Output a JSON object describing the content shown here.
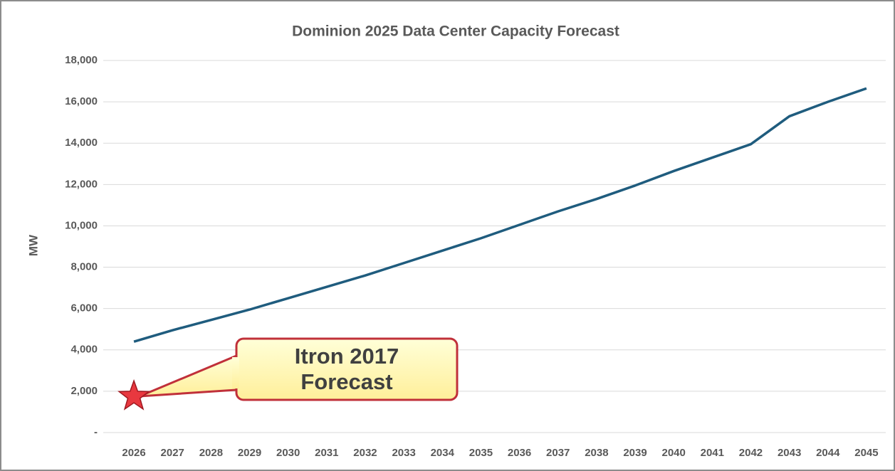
{
  "chart_data": {
    "type": "line",
    "title": "Dominion 2025 Data Center Capacity Forecast",
    "y_label": "MW",
    "categories": [
      "2026",
      "2027",
      "2028",
      "2029",
      "2030",
      "2031",
      "2032",
      "2033",
      "2034",
      "2035",
      "2036",
      "2037",
      "2038",
      "2039",
      "2040",
      "2041",
      "2042",
      "2043",
      "2044",
      "2045"
    ],
    "series": [
      {
        "color": "#1f5c7e",
        "values": [
          4400,
          4950,
          5450,
          5950,
          6500,
          7050,
          7600,
          8200,
          8800,
          9400,
          10050,
          10700,
          11300,
          11950,
          12650,
          13300,
          13950,
          15300,
          16000,
          16650
        ]
      }
    ],
    "ylim": [
      0,
      18000
    ],
    "yticks": [
      {
        "value": 0,
        "label": "-"
      },
      {
        "value": 2000,
        "label": "2,000"
      },
      {
        "value": 4000,
        "label": "4,000"
      },
      {
        "value": 6000,
        "label": "6,000"
      },
      {
        "value": 8000,
        "label": "8,000"
      },
      {
        "value": 10000,
        "label": "10,000"
      },
      {
        "value": 12000,
        "label": "12,000"
      },
      {
        "value": 14000,
        "label": "14,000"
      },
      {
        "value": 16000,
        "label": "16,000"
      },
      {
        "value": 18000,
        "label": "18,000"
      }
    ],
    "grid": true,
    "annotation": {
      "text": "Itron 2017 Forecast",
      "value": 1750,
      "color": "#e8383f"
    }
  }
}
